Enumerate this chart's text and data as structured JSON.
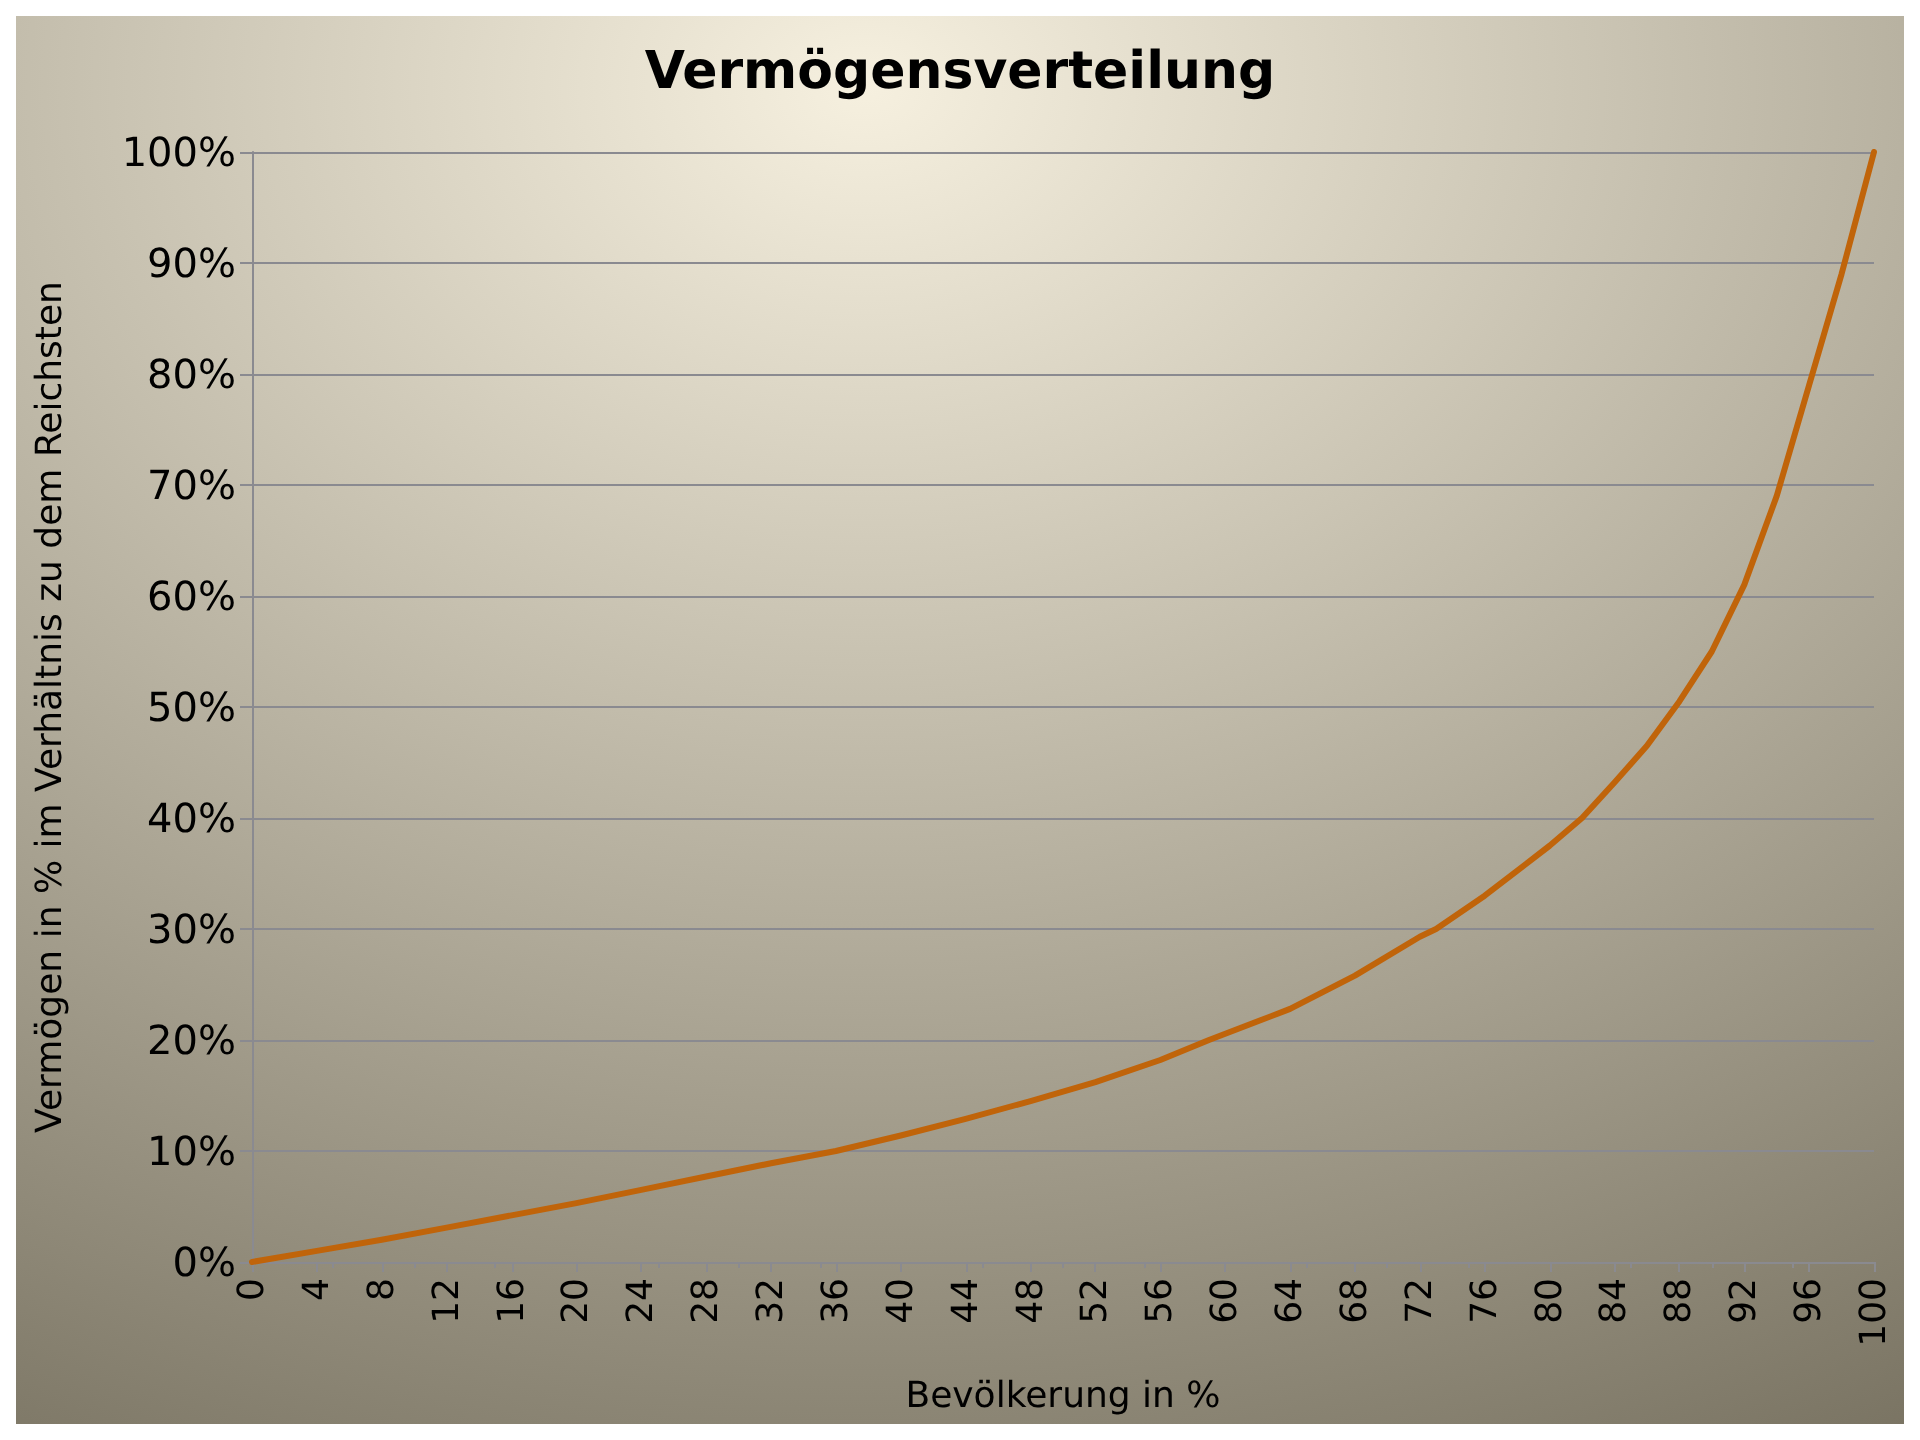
{
  "chart_data": {
    "type": "line",
    "title": "Vermögensverteilung",
    "xlabel": "Bevölkerung in %",
    "ylabel": "Vermögen in % im Verhältnis zu dem Reichsten",
    "x": [
      0,
      4,
      8,
      12,
      16,
      20,
      24,
      28,
      32,
      36,
      40,
      44,
      48,
      52,
      56,
      59,
      64,
      68,
      72,
      73,
      76,
      80,
      82,
      84,
      86,
      88,
      90,
      92,
      94,
      96,
      98,
      100
    ],
    "series": [
      {
        "color": "#c0640a",
        "values": [
          0,
          1,
          2,
          3.1,
          4.2,
          5.3,
          6.5,
          7.7,
          8.9,
          10,
          11.4,
          12.9,
          14.5,
          16.2,
          18.2,
          20,
          22.8,
          25.8,
          29.3,
          30,
          33,
          37.5,
          40,
          43.2,
          46.5,
          50.5,
          55,
          61,
          69,
          79,
          89,
          100
        ]
      }
    ],
    "xlim": [
      0,
      100
    ],
    "xticks": [
      0,
      4,
      8,
      12,
      16,
      20,
      24,
      28,
      32,
      36,
      40,
      44,
      48,
      52,
      56,
      60,
      64,
      68,
      72,
      76,
      80,
      84,
      88,
      92,
      96,
      100
    ],
    "ylim": [
      0,
      100
    ],
    "yticks": [
      {
        "value": 0,
        "label": "0%"
      },
      {
        "value": 10,
        "label": "10%"
      },
      {
        "value": 20,
        "label": "20%"
      },
      {
        "value": 30,
        "label": "30%"
      },
      {
        "value": 40,
        "label": "40%"
      },
      {
        "value": 50,
        "label": "50%"
      },
      {
        "value": 60,
        "label": "60%"
      },
      {
        "value": 70,
        "label": "70%"
      },
      {
        "value": 80,
        "label": "80%"
      },
      {
        "value": 90,
        "label": "90%"
      },
      {
        "value": 100,
        "label": "100%"
      }
    ],
    "grid": "y",
    "marker": "none",
    "line_style": "solid"
  }
}
